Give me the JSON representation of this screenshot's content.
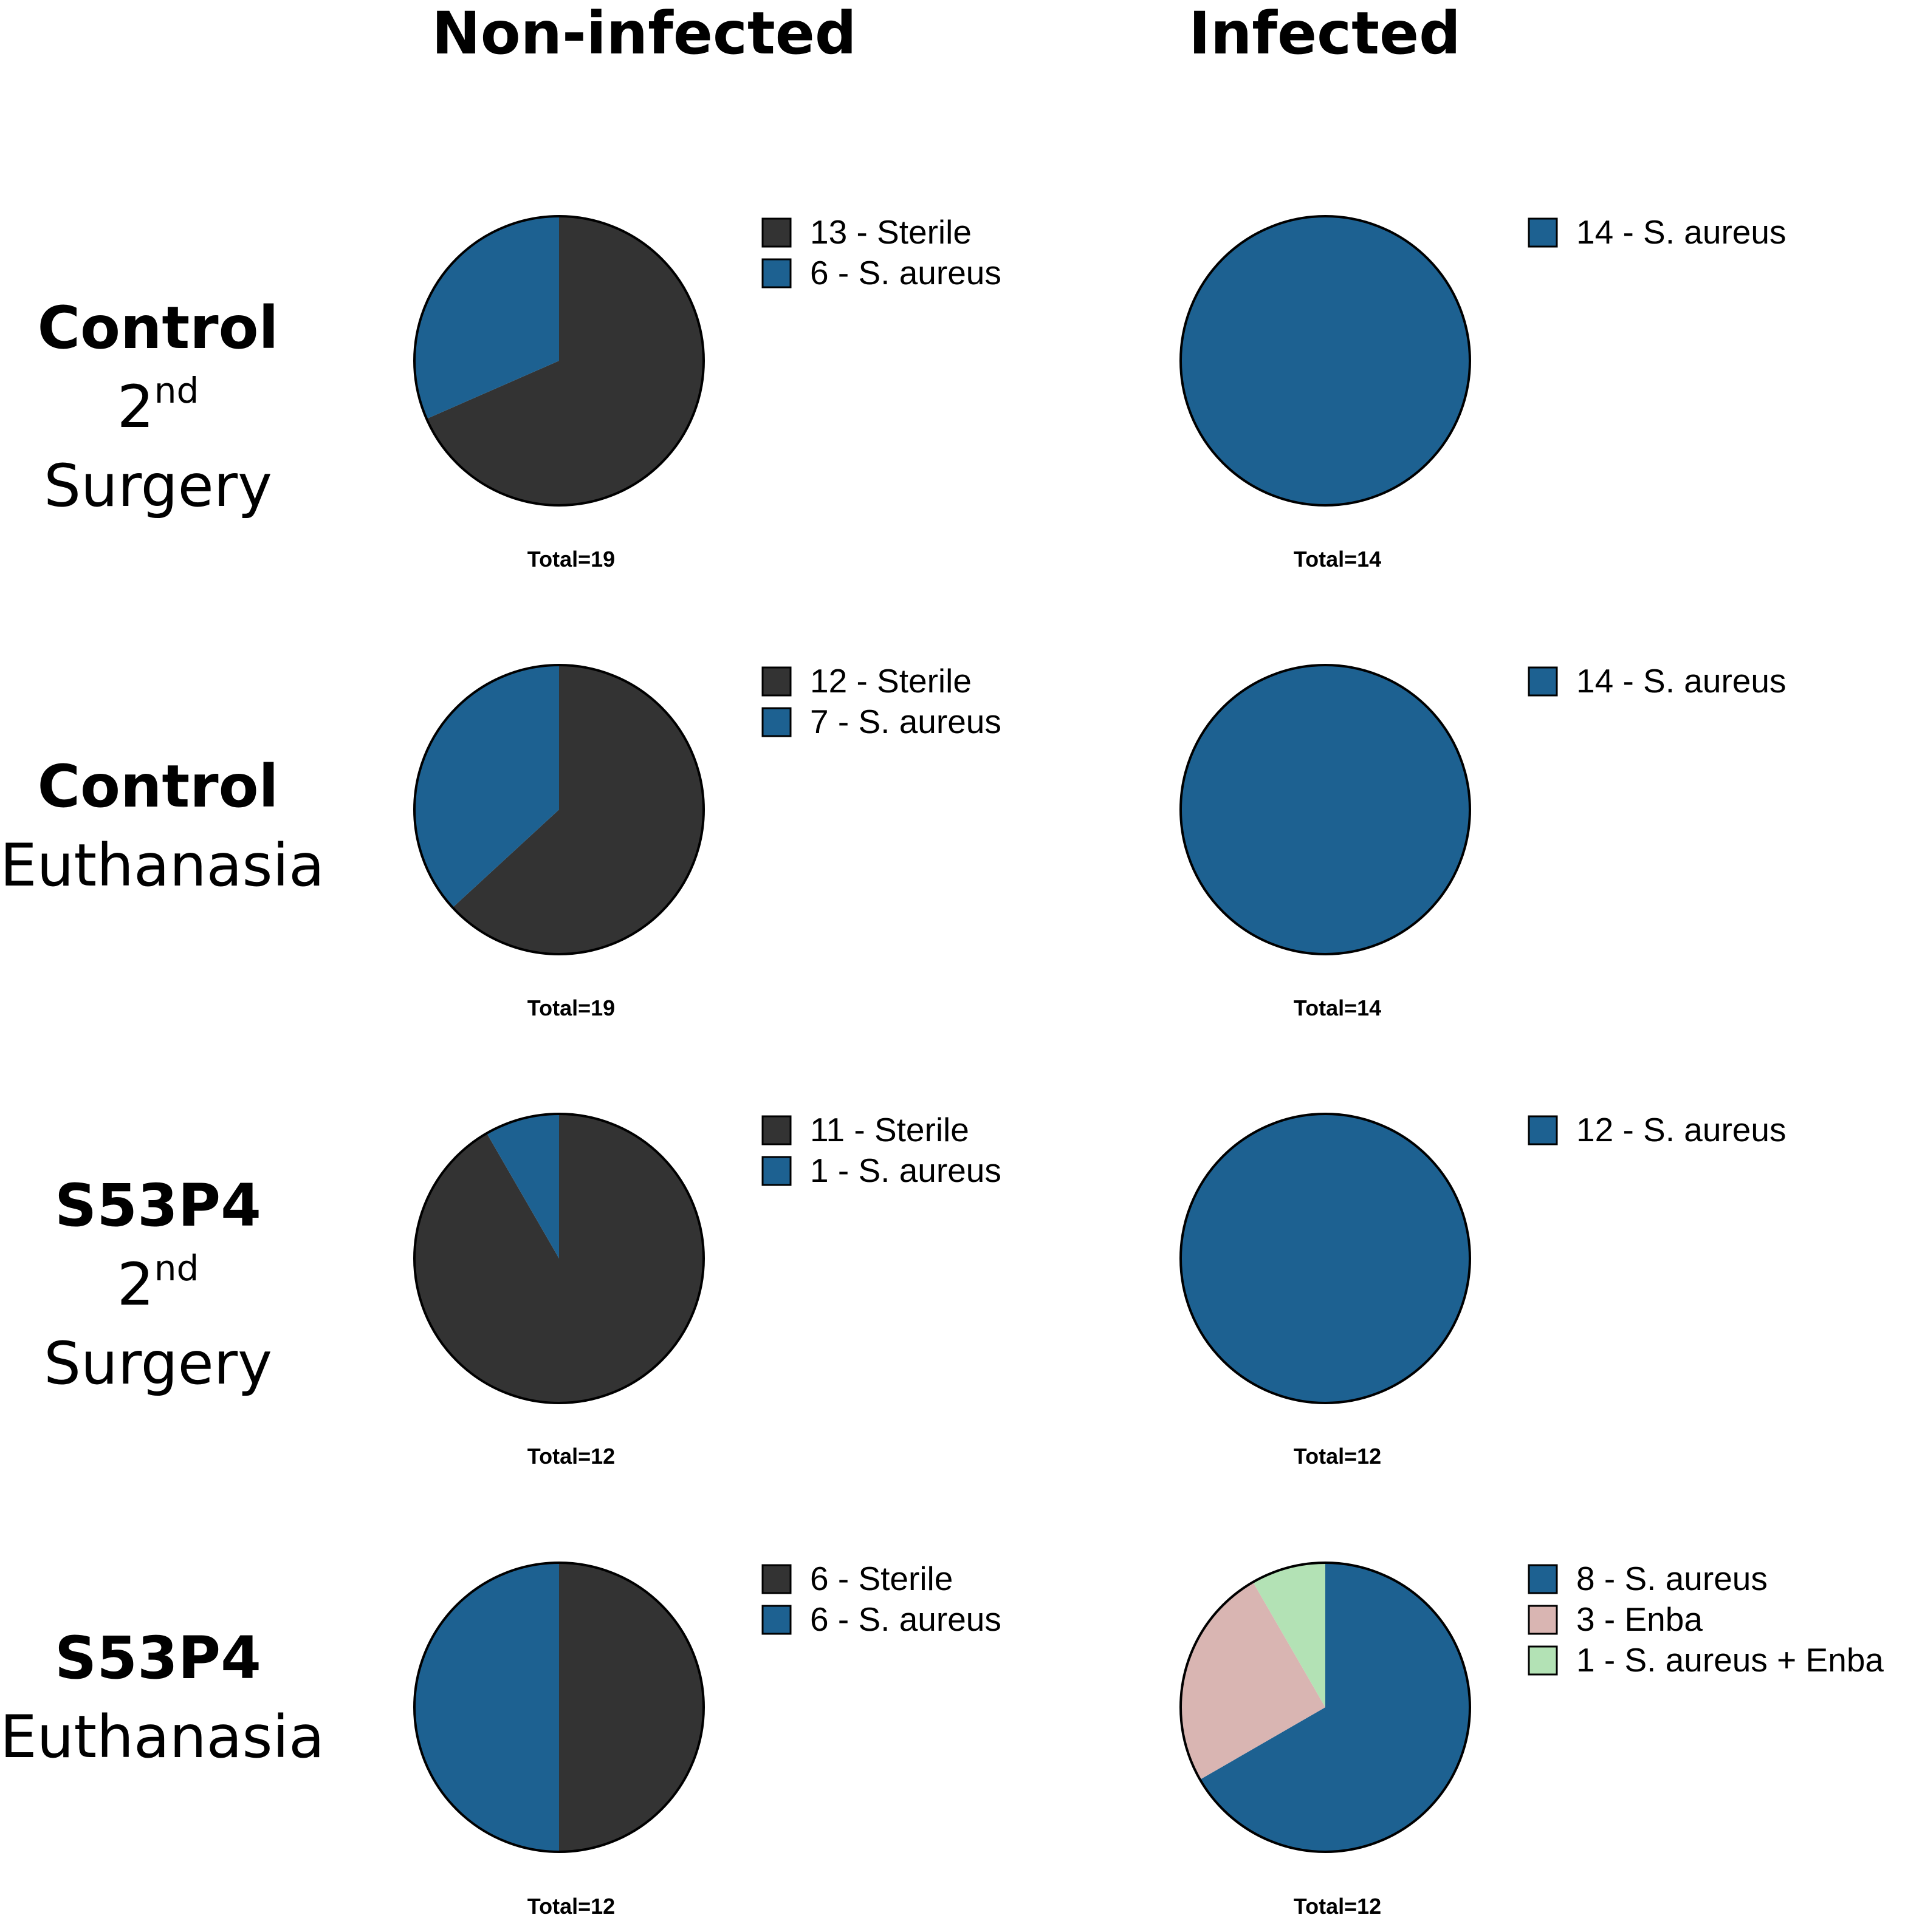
{
  "colors": {
    "Sterile": "#333333",
    "S. aureus": "#1d6191",
    "Enba": "#d9b5b2",
    "S. aureus + Enba": "#b3e2b5",
    "outline": "#000000"
  },
  "columns": [
    "Non-infected",
    "Infected"
  ],
  "rows": [
    {
      "group": "Control",
      "time_prefix": "2",
      "time_sup": "nd",
      "time_suffix": " Surgery",
      "time": ""
    },
    {
      "group": "Control",
      "time_prefix": "",
      "time_sup": "",
      "time_suffix": "",
      "time": "Euthanasia"
    },
    {
      "group": "S53P4",
      "time_prefix": "2",
      "time_sup": "nd",
      "time_suffix": " Surgery",
      "time": ""
    },
    {
      "group": "S53P4",
      "time_prefix": "",
      "time_sup": "",
      "time_suffix": "",
      "time": "Euthanasia"
    }
  ],
  "chart_data": [
    {
      "type": "pie",
      "row": 0,
      "col": 0,
      "total_label": "Total=19",
      "slices": [
        {
          "label": "13 - Sterile",
          "category": "Sterile",
          "value": 13
        },
        {
          "label": "6 - S. aureus",
          "category": "S. aureus",
          "value": 6
        }
      ]
    },
    {
      "type": "pie",
      "row": 0,
      "col": 1,
      "total_label": "Total=14",
      "slices": [
        {
          "label": "14 - S. aureus",
          "category": "S. aureus",
          "value": 14
        }
      ]
    },
    {
      "type": "pie",
      "row": 1,
      "col": 0,
      "total_label": "Total=19",
      "slices": [
        {
          "label": "12 - Sterile",
          "category": "Sterile",
          "value": 12
        },
        {
          "label": "7 - S. aureus",
          "category": "S. aureus",
          "value": 7
        }
      ]
    },
    {
      "type": "pie",
      "row": 1,
      "col": 1,
      "total_label": "Total=14",
      "slices": [
        {
          "label": "14 - S. aureus",
          "category": "S. aureus",
          "value": 14
        }
      ]
    },
    {
      "type": "pie",
      "row": 2,
      "col": 0,
      "total_label": "Total=12",
      "slices": [
        {
          "label": "11 - Sterile",
          "category": "Sterile",
          "value": 11
        },
        {
          "label": "1 - S. aureus",
          "category": "S. aureus",
          "value": 1
        }
      ]
    },
    {
      "type": "pie",
      "row": 2,
      "col": 1,
      "total_label": "Total=12",
      "slices": [
        {
          "label": "12 - S. aureus",
          "category": "S. aureus",
          "value": 12
        }
      ]
    },
    {
      "type": "pie",
      "row": 3,
      "col": 0,
      "total_label": "Total=12",
      "slices": [
        {
          "label": "6 - Sterile",
          "category": "Sterile",
          "value": 6
        },
        {
          "label": "6 - S. aureus",
          "category": "S. aureus",
          "value": 6
        }
      ]
    },
    {
      "type": "pie",
      "row": 3,
      "col": 1,
      "total_label": "Total=12",
      "slices": [
        {
          "label": "8 - S. aureus",
          "category": "S. aureus",
          "value": 8
        },
        {
          "label": "3 - Enba",
          "category": "Enba",
          "value": 3
        },
        {
          "label": "1 - S. aureus + Enba",
          "category": "S. aureus + Enba",
          "value": 1
        }
      ]
    }
  ]
}
